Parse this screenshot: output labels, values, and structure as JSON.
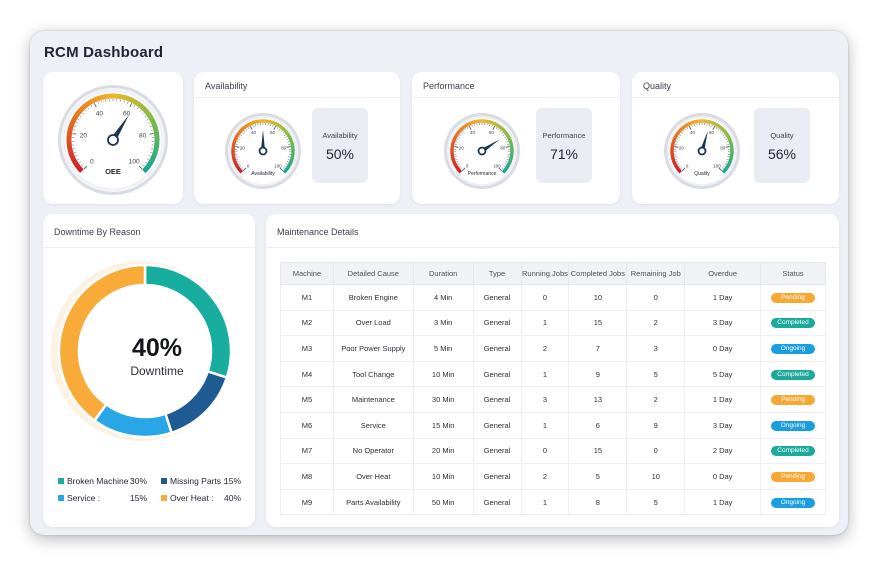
{
  "dashboard": {
    "title": "RCM  Dashboard"
  },
  "colors": {
    "teal": "#17aea0",
    "navy": "#1f5a92",
    "sky": "#29a6e6",
    "orange": "#f8ab38",
    "pending": "#f7a733",
    "completed": "#1aa99b",
    "ongoing": "#1a9ee0"
  },
  "oee": {
    "label": "OEE",
    "ticks": [
      "0",
      "20",
      "40",
      "60",
      "80",
      "100"
    ],
    "value": 62
  },
  "availability": {
    "title": "Availability",
    "gauge_label": "Availability",
    "ticks": [
      "0",
      "20",
      "40",
      "60",
      "80",
      "100"
    ],
    "value": 50,
    "box_label": "Availability",
    "box_value": "50%"
  },
  "performance": {
    "title": "Performance",
    "gauge_label": "Performance",
    "ticks": [
      "0",
      "20",
      "40",
      "60",
      "80",
      "100"
    ],
    "value": 71,
    "box_label": "Performance",
    "box_value": "71%"
  },
  "quality": {
    "title": "Quality",
    "gauge_label": "Quality",
    "ticks": [
      "0",
      "20",
      "40",
      "60",
      "80",
      "100"
    ],
    "value": 56,
    "box_label": "Quality",
    "box_value": "56%"
  },
  "downtime": {
    "title": "Downtime By Reason",
    "center_value": "40%",
    "center_label": "Downtime",
    "legend": [
      {
        "name": "Broken Machine :",
        "value": "30%",
        "color": "#17aea0"
      },
      {
        "name": "Missing Parts :",
        "value": "15%",
        "color": "#1f5a92"
      },
      {
        "name": "Service :",
        "value": "15%",
        "color": "#29a6e6"
      },
      {
        "name": "Over Heat :",
        "value": "40%",
        "color": "#f8ab38"
      }
    ]
  },
  "chart_data": {
    "type": "pie",
    "categories": [
      "Broken Machine",
      "Missing Parts",
      "Service",
      "Over Heat"
    ],
    "values": [
      30,
      15,
      15,
      40
    ],
    "title": "Downtime By Reason",
    "legend": "bottom"
  },
  "maintenance": {
    "title": "Maintenance Details",
    "columns": [
      "Machine",
      "Detailed Cause",
      "Duration",
      "Type",
      "Running Jobs",
      "Completed Jobs",
      "Remaining Job",
      "Overdue",
      "Status"
    ],
    "rows": [
      [
        "M1",
        "Broken Engine",
        "4 Min",
        "General",
        "0",
        "10",
        "0",
        "1 Day",
        "Pending"
      ],
      [
        "M2",
        "Over Load",
        "3 Min",
        "General",
        "1",
        "15",
        "2",
        "3 Day",
        "Completed"
      ],
      [
        "M3",
        "Poor Power Supply",
        "5 Min",
        "General",
        "2",
        "7",
        "3",
        "0 Day",
        "Ongoing"
      ],
      [
        "M4",
        "Tool Change",
        "10 Min",
        "General",
        "1",
        "9",
        "5",
        "5 Day",
        "Completed"
      ],
      [
        "M5",
        "Maintenance",
        "30 Min",
        "General",
        "3",
        "13",
        "2",
        "1 Day",
        "Pending"
      ],
      [
        "M6",
        "Service",
        "15 Min",
        "General",
        "1",
        "6",
        "9",
        "3 Day",
        "Ongoing"
      ],
      [
        "M7",
        "No Operator",
        "20 Min",
        "General",
        "0",
        "15",
        "0",
        "2 Day",
        "Completed"
      ],
      [
        "M8",
        "Over Heat",
        "10 Min",
        "General",
        "2",
        "5",
        "10",
        "0 Day",
        "Pending"
      ],
      [
        "M9",
        "Parts Availability",
        "50 Min",
        "General",
        "1",
        "8",
        "5",
        "1 Day",
        "Ongoing"
      ]
    ]
  }
}
